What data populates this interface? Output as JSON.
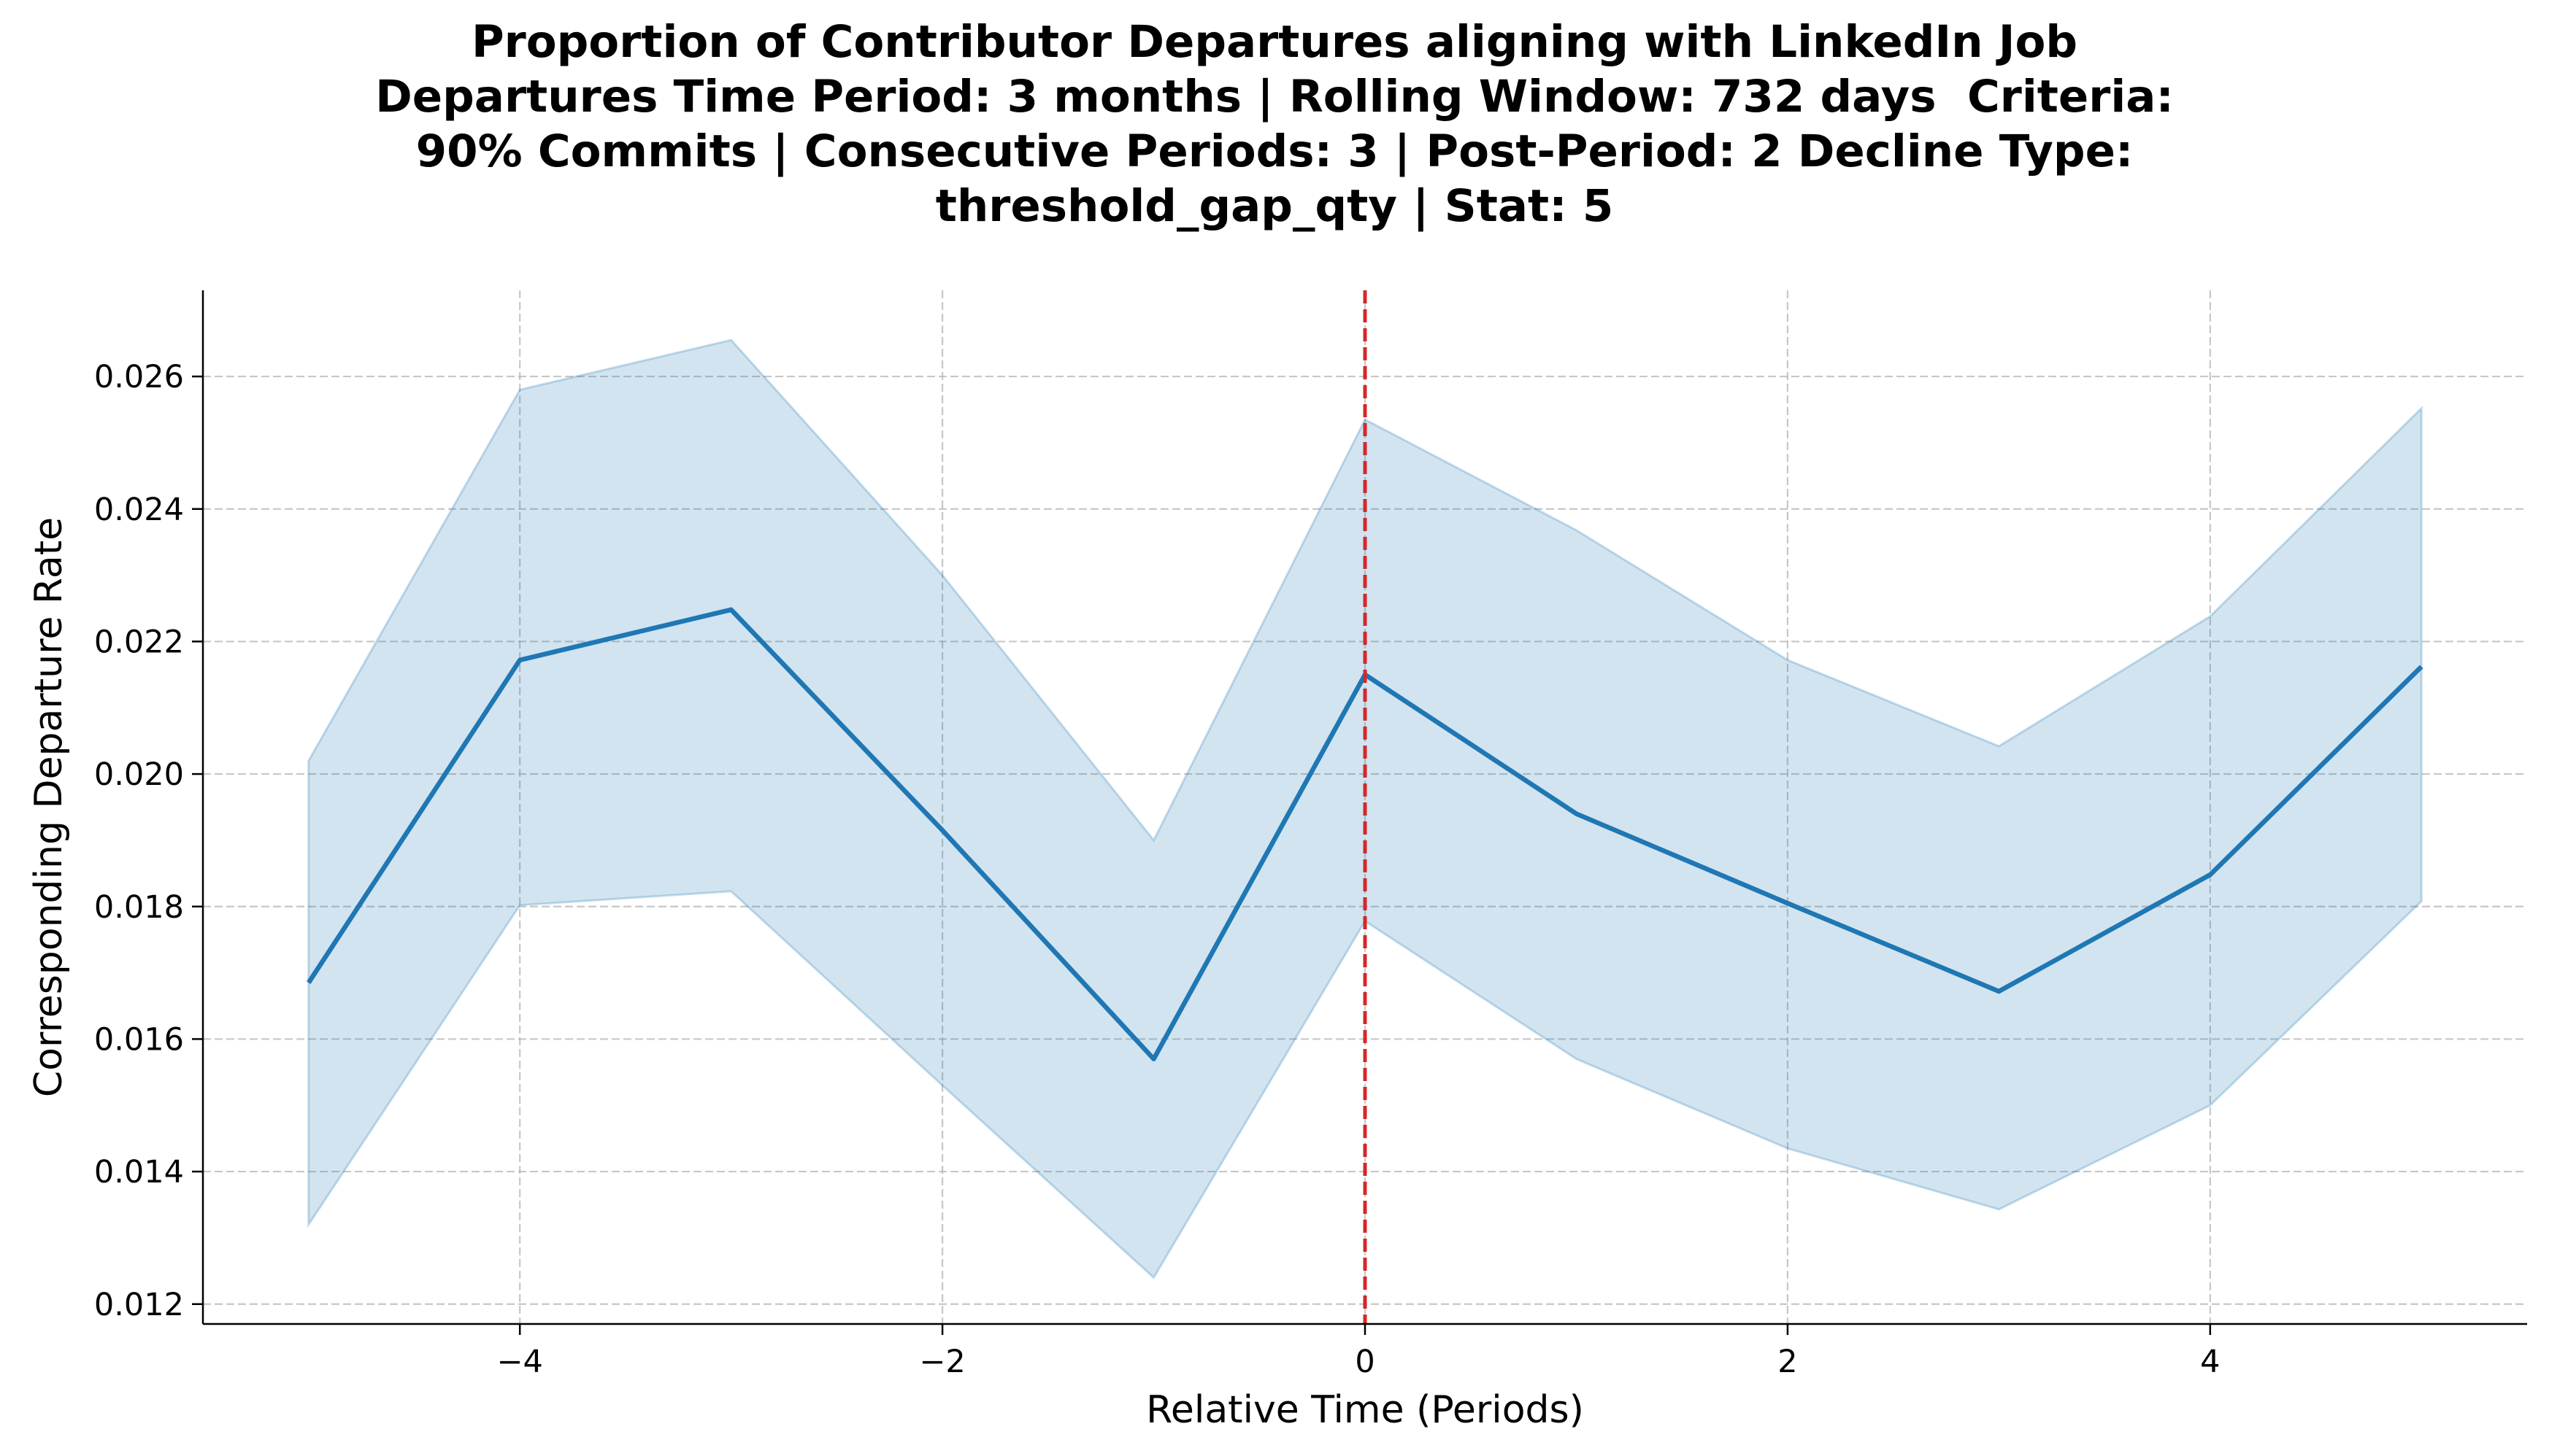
{
  "chart_data": {
    "type": "line",
    "title_lines": [
      "Proportion of Contributor Departures aligning with LinkedIn Job",
      "Departures Time Period: 3 months | Rolling Window: 732 days  Criteria:",
      "90% Commits | Consecutive Periods: 3 | Post-Period: 2 Decline Type:",
      "threshold_gap_qty | Stat: 5"
    ],
    "xlabel": "Relative Time (Periods)",
    "ylabel": "Corresponding Departure Rate",
    "xlim": [
      -5.5,
      5.5
    ],
    "ylim": [
      0.0117,
      0.0273
    ],
    "xticks": [
      -4,
      -2,
      0,
      2,
      4
    ],
    "xtick_labels": [
      "−4",
      "−2",
      "0",
      "2",
      "4"
    ],
    "yticks": [
      0.012,
      0.014,
      0.016,
      0.018,
      0.02,
      0.022,
      0.024,
      0.026
    ],
    "ytick_labels": [
      "0.012",
      "0.014",
      "0.016",
      "0.018",
      "0.020",
      "0.022",
      "0.024",
      "0.026"
    ],
    "grid": true,
    "series": [
      {
        "x": [
          -5,
          -4,
          -3,
          -2,
          -1,
          0,
          1,
          2,
          3,
          4,
          5
        ],
        "values": [
          0.01685,
          0.02172,
          0.02248,
          0.01915,
          0.0157,
          0.0215,
          0.0194,
          0.01805,
          0.01672,
          0.01848,
          0.02162
        ],
        "ci_lower": [
          0.0132,
          0.01802,
          0.01823,
          0.0153,
          0.0124,
          0.01778,
          0.0157,
          0.01435,
          0.01343,
          0.015,
          0.01808
        ],
        "ci_upper": [
          0.0202,
          0.0258,
          0.02655,
          0.023,
          0.019,
          0.02535,
          0.02368,
          0.02172,
          0.02042,
          0.02238,
          0.02552
        ],
        "color": "#1f77b4"
      }
    ],
    "vline": {
      "x": 0,
      "color": "#d62728",
      "style": "dashed"
    },
    "band_color": "#1f77b4",
    "grid_color": "#b0b0b0"
  }
}
